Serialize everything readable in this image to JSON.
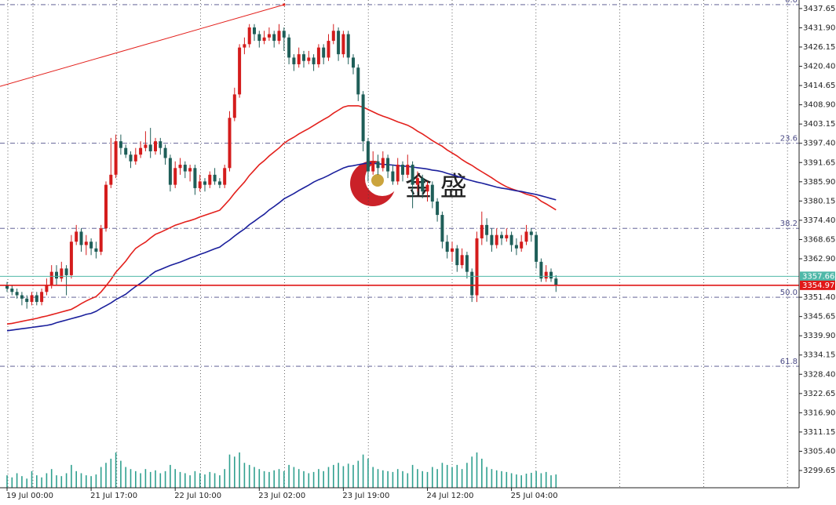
{
  "chart_data": {
    "type": "candlestick",
    "categories": [
      "19 Jul 00:00",
      null,
      null,
      null,
      null,
      null,
      null,
      null,
      null,
      null,
      null,
      null,
      null,
      null,
      null,
      null,
      null,
      "21 Jul 17:00",
      null,
      null,
      null,
      null,
      null,
      null,
      null,
      null,
      null,
      null,
      null,
      null,
      null,
      null,
      null,
      null,
      "22 Jul 10:00",
      null,
      null,
      null,
      null,
      null,
      null,
      null,
      null,
      null,
      null,
      null,
      null,
      null,
      null,
      null,
      null,
      "23 Jul 02:00",
      null,
      null,
      null,
      null,
      null,
      null,
      null,
      null,
      null,
      null,
      null,
      null,
      null,
      null,
      null,
      null,
      "23 Jul 19:00",
      null,
      null,
      null,
      null,
      null,
      null,
      null,
      null,
      null,
      null,
      null,
      null,
      null,
      null,
      null,
      null,
      "24 Jul 12:00",
      null,
      null,
      null,
      null,
      null,
      null,
      null,
      null,
      null,
      null,
      null,
      null,
      null,
      null,
      null,
      null,
      "25 Jul 04:00",
      null,
      null,
      null,
      null,
      null,
      null,
      null,
      null,
      null
    ],
    "open": [
      3355,
      3354,
      3353,
      3352,
      3351,
      3350,
      3352,
      3350,
      3353,
      3355,
      3359,
      3357,
      3360,
      3358,
      3368,
      3371,
      3367,
      3368,
      3366,
      3365,
      3372,
      3385,
      3388,
      3398,
      3396,
      3394,
      3392,
      3394,
      3396,
      3397,
      3395,
      3398,
      3396,
      3393,
      3385,
      3390,
      3391,
      3389,
      3390,
      3384,
      3386,
      3385,
      3388,
      3386,
      3385,
      3390,
      3405,
      3412,
      3426,
      3427,
      3432,
      3430,
      3428,
      3429,
      3430,
      3428,
      3431,
      3429,
      3423,
      3421,
      3424,
      3422,
      3423,
      3421,
      3426,
      3423,
      3428,
      3431,
      3424,
      3430,
      3423,
      3420,
      3412,
      3398,
      3389,
      3392,
      3390,
      3393,
      3389,
      3386,
      3391,
      3388,
      3391,
      3385,
      3387,
      3383,
      3385,
      3380,
      3376,
      3368,
      3365,
      3366,
      3361,
      3364,
      3359,
      3352,
      3369,
      3373,
      3370,
      3367,
      3370,
      3369,
      3370,
      3367,
      3366,
      3368,
      3371,
      3370,
      3362,
      3357,
      3359,
      3357
    ],
    "high": [
      3356,
      3355,
      3354,
      3353,
      3352,
      3353,
      3353,
      3354,
      3357,
      3361,
      3361,
      3362,
      3361,
      3370,
      3373,
      3372,
      3370,
      3369,
      3368,
      3373,
      3386,
      3399,
      3400,
      3400,
      3397,
      3395,
      3396,
      3398,
      3401,
      3402,
      3399,
      3399,
      3397,
      3394,
      3392,
      3393,
      3392,
      3391,
      3391,
      3388,
      3387,
      3389,
      3390,
      3387,
      3391,
      3407,
      3414,
      3427,
      3429,
      3433,
      3433,
      3431,
      3431,
      3432,
      3431,
      3433,
      3432,
      3430,
      3424,
      3426,
      3425,
      3425,
      3424,
      3427,
      3427,
      3430,
      3433,
      3432,
      3431,
      3431,
      3424,
      3421,
      3413,
      3399,
      3395,
      3394,
      3395,
      3394,
      3391,
      3393,
      3392,
      3394,
      3392,
      3389,
      3388,
      3386,
      3386,
      3381,
      3377,
      3370,
      3368,
      3367,
      3366,
      3365,
      3360,
      3371,
      3377,
      3375,
      3372,
      3372,
      3371,
      3372,
      3371,
      3369,
      3370,
      3373,
      3372,
      3371,
      3363,
      3361,
      3360,
      3358
    ],
    "low": [
      3353,
      3352,
      3351,
      3349,
      3348,
      3349,
      3349,
      3349,
      3352,
      3354,
      3355,
      3356,
      3352,
      3357,
      3367,
      3365,
      3364,
      3364,
      3363,
      3364,
      3371,
      3384,
      3387,
      3394,
      3393,
      3390,
      3391,
      3393,
      3395,
      3393,
      3394,
      3394,
      3391,
      3383,
      3384,
      3388,
      3387,
      3386,
      3382,
      3383,
      3383,
      3384,
      3385,
      3384,
      3384,
      3389,
      3404,
      3411,
      3424,
      3426,
      3428,
      3426,
      3427,
      3428,
      3426,
      3427,
      3425,
      3421,
      3419,
      3420,
      3420,
      3421,
      3419,
      3420,
      3421,
      3422,
      3427,
      3422,
      3423,
      3421,
      3418,
      3410,
      3395,
      3386,
      3388,
      3388,
      3389,
      3387,
      3385,
      3385,
      3386,
      3387,
      3378,
      3383,
      3381,
      3380,
      3378,
      3374,
      3366,
      3363,
      3362,
      3359,
      3360,
      3357,
      3350,
      3350,
      3367,
      3368,
      3365,
      3366,
      3367,
      3368,
      3365,
      3364,
      3365,
      3367,
      3368,
      3360,
      3356,
      3356,
      3356,
      3353
    ],
    "close": [
      3354,
      3353,
      3352,
      3351,
      3350,
      3352,
      3350,
      3353,
      3355,
      3359,
      3357,
      3360,
      3358,
      3368,
      3371,
      3367,
      3368,
      3366,
      3365,
      3372,
      3385,
      3388,
      3398,
      3396,
      3394,
      3392,
      3394,
      3396,
      3397,
      3395,
      3398,
      3396,
      3393,
      3385,
      3390,
      3391,
      3389,
      3390,
      3384,
      3386,
      3385,
      3388,
      3386,
      3385,
      3390,
      3405,
      3412,
      3426,
      3427,
      3432,
      3430,
      3428,
      3429,
      3430,
      3428,
      3431,
      3429,
      3423,
      3421,
      3424,
      3422,
      3423,
      3421,
      3426,
      3423,
      3428,
      3431,
      3424,
      3430,
      3423,
      3420,
      3412,
      3398,
      3389,
      3392,
      3390,
      3393,
      3389,
      3386,
      3391,
      3388,
      3391,
      3385,
      3387,
      3383,
      3385,
      3380,
      3376,
      3368,
      3365,
      3366,
      3361,
      3364,
      3359,
      3352,
      3369,
      3373,
      3370,
      3367,
      3370,
      3369,
      3370,
      3367,
      3366,
      3368,
      3371,
      3370,
      3362,
      3357,
      3359,
      3357,
      3355
    ],
    "up_color": "#d41c1c",
    "down_color": "#1e5e58",
    "overlays": [
      {
        "color": "#e3201c",
        "values": [
          3343.4,
          3343.6,
          3343.9,
          3344.2,
          3344.5,
          3344.8,
          3345.1,
          3345.5,
          3345.8,
          3346.2,
          3346.6,
          3347.0,
          3347.4,
          3347.8,
          3348.6,
          3349.5,
          3350.3,
          3351.0,
          3351.6,
          3353.0,
          3354.8,
          3356.7,
          3358.9,
          3360.5,
          3362.2,
          3364.2,
          3366.0,
          3367.0,
          3367.9,
          3369.1,
          3370.2,
          3370.8,
          3371.5,
          3372.2,
          3372.9,
          3373.4,
          3373.9,
          3374.3,
          3374.8,
          3375.4,
          3375.9,
          3376.4,
          3376.9,
          3377.4,
          3379.0,
          3380.6,
          3382.5,
          3384.2,
          3385.8,
          3387.8,
          3389.4,
          3391.0,
          3392.2,
          3393.6,
          3394.8,
          3396.0,
          3397.4,
          3398.4,
          3399.2,
          3400.2,
          3401.0,
          3401.8,
          3402.7,
          3403.6,
          3404.5,
          3405.3,
          3406.4,
          3407.3,
          3408.2,
          3408.6,
          3408.6,
          3408.6,
          3408.2,
          3407.5,
          3406.8,
          3406.1,
          3405.5,
          3405.0,
          3404.4,
          3403.8,
          3403.3,
          3402.8,
          3402.0,
          3401.0,
          3400.2,
          3399.2,
          3398.2,
          3397.3,
          3396.5,
          3395.4,
          3394.5,
          3393.6,
          3392.5,
          3391.6,
          3390.8,
          3389.8,
          3388.9,
          3388.0,
          3387.1,
          3386.1,
          3385.2,
          3384.4,
          3383.8,
          3383.3,
          3382.8,
          3382.2,
          3381.8,
          3381.3,
          3380.1,
          3379.3,
          3378.4,
          3377.5
        ]
      },
      {
        "color": "#1a1f9c",
        "values": [
          3341.4,
          3341.6,
          3341.8,
          3342.0,
          3342.2,
          3342.4,
          3342.6,
          3342.8,
          3343.0,
          3343.3,
          3343.8,
          3344.2,
          3344.6,
          3345.0,
          3345.4,
          3345.8,
          3346.3,
          3346.6,
          3347.2,
          3348.1,
          3348.9,
          3349.7,
          3350.7,
          3351.5,
          3352.3,
          3353.5,
          3354.6,
          3355.6,
          3356.7,
          3358.0,
          3359.1,
          3359.7,
          3360.3,
          3360.9,
          3361.4,
          3361.9,
          3362.5,
          3363.1,
          3363.6,
          3364.2,
          3364.7,
          3365.3,
          3365.9,
          3366.4,
          3367.5,
          3368.5,
          3369.7,
          3370.8,
          3371.8,
          3373.1,
          3374.1,
          3375.2,
          3376.2,
          3377.5,
          3378.5,
          3379.6,
          3380.8,
          3381.6,
          3382.4,
          3383.3,
          3384.1,
          3384.9,
          3385.8,
          3386.5,
          3387.1,
          3387.8,
          3388.6,
          3389.3,
          3390.0,
          3390.5,
          3390.7,
          3391.0,
          3391.3,
          3391.5,
          3391.4,
          3391.3,
          3391.1,
          3391.0,
          3390.9,
          3390.7,
          3390.6,
          3390.5,
          3390.3,
          3390.1,
          3389.9,
          3389.7,
          3389.4,
          3389.2,
          3388.9,
          3388.4,
          3388.0,
          3387.6,
          3387.1,
          3386.6,
          3386.2,
          3385.8,
          3385.5,
          3385.1,
          3384.7,
          3384.3,
          3384.0,
          3383.8,
          3383.5,
          3383.2,
          3383.0,
          3382.7,
          3382.4,
          3382.1,
          3381.7,
          3381.3,
          3380.9,
          3380.5
        ]
      }
    ],
    "volume": {
      "color": "#2fa08f",
      "values": [
        30,
        25,
        35,
        28,
        22,
        40,
        30,
        25,
        35,
        45,
        30,
        28,
        35,
        55,
        40,
        35,
        30,
        28,
        32,
        50,
        60,
        70,
        85,
        65,
        50,
        45,
        40,
        35,
        45,
        38,
        42,
        35,
        40,
        55,
        45,
        38,
        35,
        30,
        40,
        35,
        32,
        38,
        35,
        30,
        45,
        80,
        75,
        85,
        60,
        55,
        50,
        45,
        40,
        38,
        42,
        45,
        40,
        55,
        50,
        45,
        40,
        35,
        38,
        45,
        40,
        50,
        55,
        60,
        52,
        58,
        55,
        65,
        80,
        70,
        50,
        45,
        42,
        40,
        38,
        45,
        40,
        35,
        55,
        45,
        40,
        38,
        50,
        45,
        60,
        55,
        50,
        55,
        45,
        60,
        75,
        85,
        70,
        50,
        45,
        42,
        40,
        38,
        35,
        32,
        30,
        34,
        36,
        40,
        35,
        38,
        30,
        32
      ]
    },
    "trendline": {
      "color": "#e3201c",
      "values": [
        3414.4,
        3438.8
      ]
    },
    "price_lines": [
      {
        "value": 3357.66,
        "color": "#4fb8a8"
      },
      {
        "value": 3354.97,
        "color": "#e01818"
      }
    ],
    "fib_levels": [
      {
        "label": "0.0",
        "value": 3438.8
      },
      {
        "label": "23.6",
        "value": 3397.4
      },
      {
        "label": "38.2",
        "value": 3372.0
      },
      {
        "label": "50.0",
        "value": 3351.4
      },
      {
        "label": "61.8",
        "value": 3330.8
      }
    ],
    "fib_color": "#4b4b86",
    "watermark": "金 盛",
    "ylim": [
      3294.5,
      3440.2
    ],
    "yticks": [
      3437.65,
      {
        "value": 3431.9,
        "label": "3431.90"
      },
      3426.15,
      {
        "value": 3420.4,
        "label": "3420.40"
      },
      3414.65,
      {
        "value": 3408.9,
        "label": "3408.90"
      },
      3403.15,
      {
        "value": 3397.4,
        "label": "3397.40"
      },
      3391.65,
      {
        "value": 3385.9,
        "label": "3385.90"
      },
      3380.15,
      {
        "value": 3374.4,
        "label": "3374.40"
      },
      3368.65,
      {
        "value": 3362.9,
        "label": "3362.90"
      },
      {
        "value": 3351.4,
        "label": "3351.40"
      },
      3345.65,
      {
        "value": 3339.9,
        "label": "3339.90"
      },
      3334.15,
      {
        "value": 3328.4,
        "label": "3328.40"
      },
      3322.65,
      {
        "value": 3316.9,
        "label": "3316.90"
      },
      3311.15,
      {
        "value": 3305.4,
        "label": "3305.40"
      },
      3299.65
    ]
  }
}
